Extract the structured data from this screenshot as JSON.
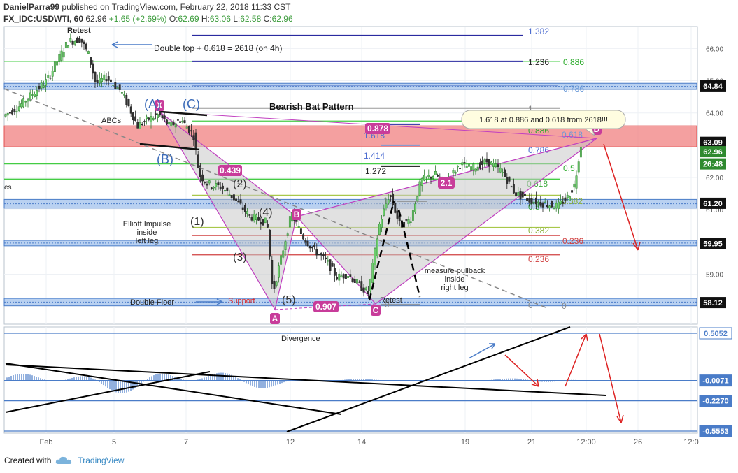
{
  "header": {
    "author": "DanielParra99",
    "published_text": " published on TradingView.com, February 22, 2018 11:33 CST",
    "symbol": "FX_IDC:USDWTI, 60",
    "last": "62.96",
    "change": "+1.65 (+2.69%)",
    "o_label": "O:",
    "o": "62.69",
    "h_label": "H:",
    "h": "63.06",
    "l_label": "L:",
    "l": "62.58",
    "c_label": "C:",
    "c": "62.96"
  },
  "footer": {
    "created_with": "Created with",
    "brand": "TradingView"
  },
  "colors": {
    "up": "#2f7d2f",
    "down": "#222222",
    "grid": "#eef1f5",
    "zone_blue": "#a8c6ee",
    "zone_red": "#f08080",
    "pattern_fill": "#c8c8c8",
    "pattern_line": "#c040c0",
    "label_magenta": "#c83c9a",
    "osc_blue": "#1f2fc8",
    "osc_black": "#000000"
  },
  "chart_data": [
    {
      "type": "candlestick",
      "title": "FX_IDC:USDWTI, 60",
      "yaxis": {
        "min": 57.45,
        "max": 66.68,
        "ticks": [
          59.0,
          61.0,
          62.0,
          64.0,
          65.0,
          66.0
        ]
      },
      "xaxis": {
        "ticks": [
          "Feb",
          "5",
          "7",
          "12",
          "14",
          "19",
          "21",
          "12:00",
          "26",
          "12:0"
        ]
      },
      "price_labels": [
        {
          "value": "64.84",
          "price": 64.84,
          "style": "dark"
        },
        {
          "value": "63.09",
          "price": 63.09,
          "style": "dark"
        },
        {
          "value": "62.96",
          "price": 62.8,
          "style": "green"
        },
        {
          "value": "26:48",
          "price": 62.42,
          "style": "green"
        },
        {
          "value": "61.20",
          "price": 61.2,
          "style": "dark"
        },
        {
          "value": "59.95",
          "price": 59.95,
          "style": "dark"
        },
        {
          "value": "58.12",
          "price": 58.12,
          "style": "dark"
        }
      ],
      "zones": [
        {
          "color": "red",
          "from": 62.95,
          "to": 63.6
        },
        {
          "color": "blue",
          "from": 64.73,
          "to": 64.92
        },
        {
          "color": "blue",
          "from": 61.05,
          "to": 61.32
        },
        {
          "color": "blue",
          "from": 59.88,
          "to": 60.05
        },
        {
          "color": "blue",
          "from": 58.02,
          "to": 58.25
        }
      ],
      "fib_levels": [
        {
          "label": "1.382",
          "price": 66.4
        },
        {
          "label": "1.236",
          "price": 65.6
        },
        {
          "label": "0.886",
          "price": 65.6
        },
        {
          "label": "0.786",
          "price": 64.85
        },
        {
          "label": "1",
          "price": 64.15
        },
        {
          "label": "0.886",
          "price": 63.75
        },
        {
          "label": "1.618",
          "price": 63.65
        },
        {
          "label": "0.618",
          "price": 63.6
        },
        {
          "label": "0.786",
          "price": 63.1
        },
        {
          "label": "1.414",
          "price": 63.0
        },
        {
          "label": "0.5",
          "price": 62.42
        },
        {
          "label": "1.272",
          "price": 62.35
        },
        {
          "label": "0.618",
          "price": 61.95
        },
        {
          "label": "1",
          "price": 61.55
        },
        {
          "label": "0.5",
          "price": 61.4
        },
        {
          "label": "0.382",
          "price": 61.45
        },
        {
          "label": "0.382",
          "price": 60.45
        },
        {
          "label": "0.236",
          "price": 60.2
        },
        {
          "label": "0.236",
          "price": 59.6
        },
        {
          "label": "0",
          "price": 58.15
        },
        {
          "label": "0",
          "price": 58.15
        },
        {
          "label": "0",
          "price": 58.1
        }
      ],
      "pattern_points": [
        {
          "label": "X",
          "price": 63.95
        },
        {
          "label": "A",
          "price": 58.22
        },
        {
          "label": "B",
          "price": 61.0
        },
        {
          "label": "C",
          "price": 58.3
        },
        {
          "label": "D",
          "price": 63.5
        }
      ],
      "ratio_labels": [
        "0.878",
        "0.439",
        "0.907",
        "2.1"
      ],
      "annotations": [
        "Retest",
        "Double top + 0.618 = 2618 (on 4h)",
        "ABCs",
        "(A)",
        "(C)",
        "(B)",
        "Bearish Bat Pattern",
        "1.618 at 0.886 and 0.618 from 2618!!!",
        "Elliott Impulse\ninside\nleft leg",
        "(1)",
        "(2)",
        "(3)",
        "(4)",
        "(5)",
        "Double Floor",
        "Support",
        "Retest",
        "measure pullback\ninside\nright leg",
        "es"
      ]
    },
    {
      "type": "line",
      "title": "",
      "yaxis": {
        "ticks": [
          0.5052,
          -0.0071,
          -0.227,
          -0.5553
        ]
      },
      "price_labels": [
        "0.5052",
        "-0.0071",
        "-0.2270",
        "-0.5553"
      ],
      "series": [],
      "annotations": [
        "Divergence"
      ]
    }
  ]
}
